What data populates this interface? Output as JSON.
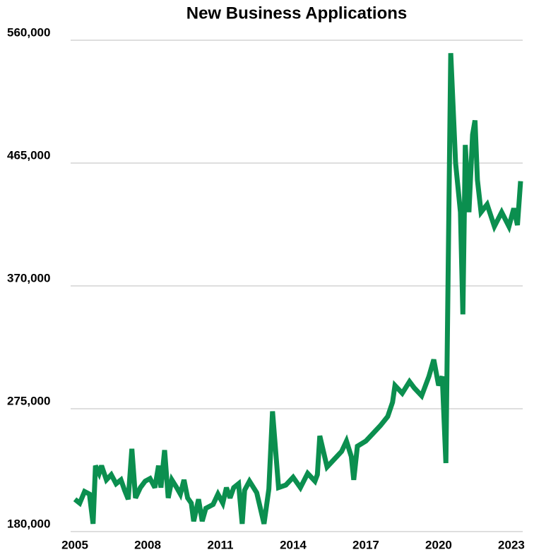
{
  "chart_data": {
    "type": "line",
    "title": "New Business Applications",
    "x": [
      2005.0,
      2005.2,
      2005.4,
      2005.6,
      2005.75,
      2005.85,
      2006.0,
      2006.1,
      2006.3,
      2006.5,
      2006.7,
      2006.9,
      2007.05,
      2007.2,
      2007.35,
      2007.5,
      2007.7,
      2007.9,
      2008.1,
      2008.3,
      2008.45,
      2008.55,
      2008.7,
      2008.85,
      2009.0,
      2009.2,
      2009.35,
      2009.5,
      2009.65,
      2009.8,
      2009.9,
      2010.1,
      2010.25,
      2010.4,
      2010.7,
      2010.9,
      2011.1,
      2011.25,
      2011.4,
      2011.55,
      2011.75,
      2011.9,
      2012.0,
      2012.2,
      2012.5,
      2012.8,
      2013.0,
      2013.15,
      2013.4,
      2013.7,
      2014.0,
      2014.3,
      2014.6,
      2014.9,
      2015.0,
      2015.1,
      2015.4,
      2015.7,
      2016.0,
      2016.2,
      2016.4,
      2016.5,
      2016.65,
      2017.0,
      2017.3,
      2017.6,
      2017.9,
      2018.1,
      2018.2,
      2018.5,
      2018.8,
      2019.0,
      2019.3,
      2019.6,
      2019.8,
      2020.0,
      2020.15,
      2020.3,
      2020.5,
      2020.7,
      2020.9,
      2021.0,
      2021.1,
      2021.25,
      2021.4,
      2021.5,
      2021.6,
      2021.75,
      2022.0,
      2022.3,
      2022.6,
      2022.9,
      2023.1,
      2023.25,
      2023.3,
      2023.38
    ],
    "series": [
      {
        "name": "New Business Applications",
        "color": "#0b8f4f",
        "values": [
          205000,
          202000,
          211000,
          209000,
          186000,
          231000,
          225000,
          231000,
          220000,
          224000,
          217000,
          220000,
          212000,
          205000,
          244000,
          206000,
          214000,
          219000,
          221000,
          214000,
          231000,
          214000,
          243000,
          206000,
          220000,
          214000,
          209000,
          220000,
          206000,
          202000,
          188000,
          205000,
          188000,
          198000,
          201000,
          209000,
          202000,
          214000,
          206000,
          214000,
          217000,
          186000,
          212000,
          219000,
          210000,
          186000,
          213000,
          273000,
          214000,
          216000,
          222000,
          214000,
          225000,
          219000,
          224000,
          254000,
          230000,
          236000,
          242000,
          250000,
          238000,
          220000,
          246000,
          250000,
          256000,
          262000,
          269000,
          280000,
          293000,
          287000,
          296000,
          291000,
          285000,
          300000,
          313000,
          293000,
          300000,
          233000,
          550000,
          465000,
          427000,
          348000,
          479000,
          427000,
          487000,
          498000,
          452000,
          427000,
          433000,
          416000,
          427000,
          416000,
          430000,
          417000,
          430000,
          451000
        ]
      }
    ],
    "xlim": [
      2005,
      2023.38
    ],
    "xticks": [
      2005,
      2008,
      2011,
      2014,
      2017,
      2020,
      2023
    ],
    "ylim": [
      180000,
      560000
    ],
    "yticks": [
      {
        "value": 180000,
        "label": "180,000"
      },
      {
        "value": 275000,
        "label": "275,000"
      },
      {
        "value": 370000,
        "label": "370,000"
      },
      {
        "value": 465000,
        "label": "465,000"
      },
      {
        "value": 560000,
        "label": "560,000"
      }
    ],
    "grid": true
  }
}
